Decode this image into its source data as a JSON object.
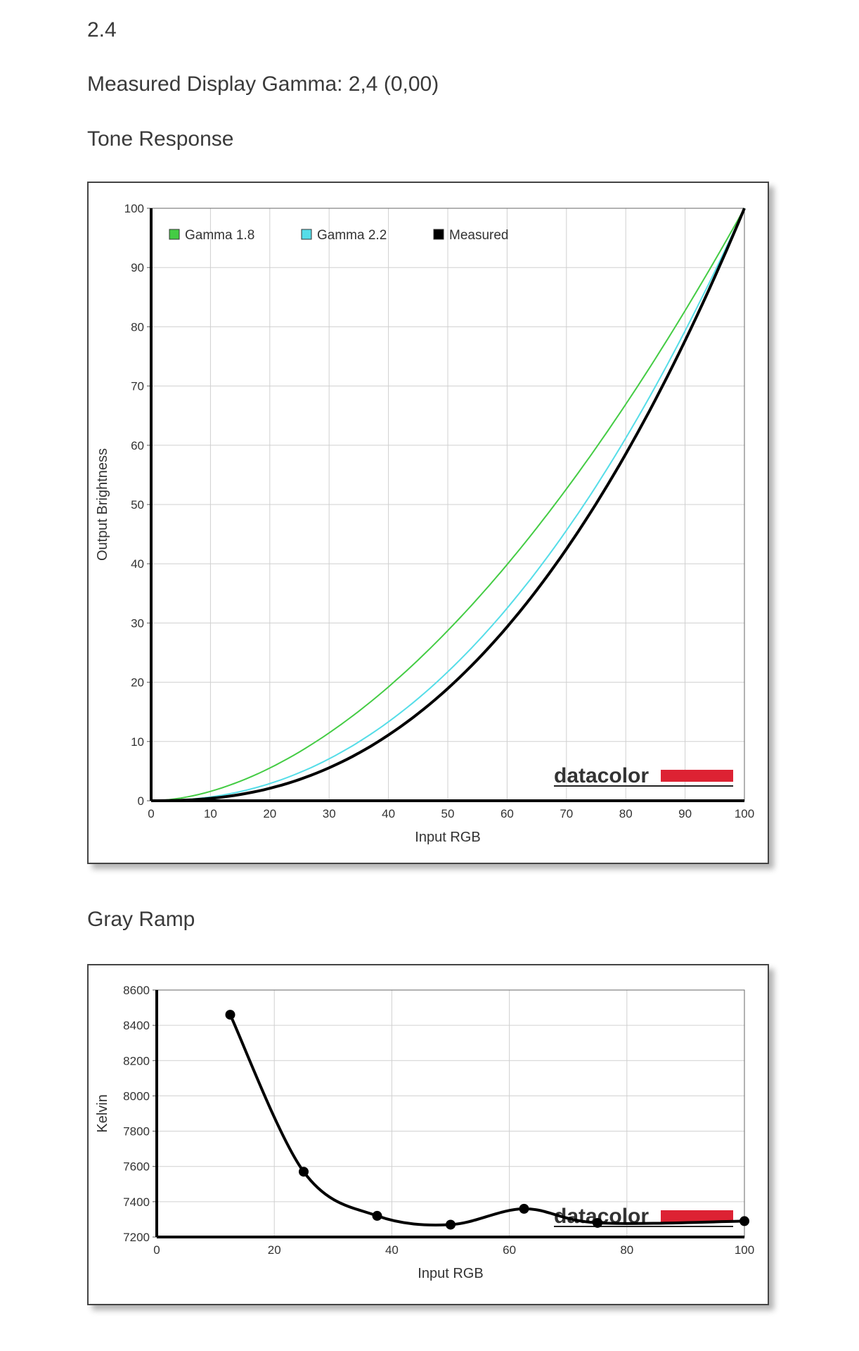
{
  "page": {
    "gamma_label": "2.4",
    "measured_gamma": "Measured Display Gamma: 2,4 (0,00)",
    "tone_title": "Tone Response",
    "gray_title": "Gray Ramp"
  },
  "logo": {
    "text": "datacolor",
    "color": "#dd2233"
  },
  "chart_data": [
    {
      "type": "line",
      "xlabel": "Input RGB",
      "ylabel": "Output Brightness",
      "xlim": [
        0,
        100
      ],
      "ylim": [
        0,
        100
      ],
      "x_ticks": [
        0,
        10,
        20,
        30,
        40,
        50,
        60,
        70,
        80,
        90,
        100
      ],
      "y_ticks": [
        0,
        10,
        20,
        30,
        40,
        50,
        60,
        70,
        80,
        90,
        100
      ],
      "grid": true,
      "legend_position": "top-left",
      "series": [
        {
          "name": "Gamma 1.8",
          "color": "#44cc44",
          "gamma": 1.8,
          "x": [
            0,
            10,
            20,
            30,
            40,
            50,
            60,
            70,
            80,
            90,
            100
          ],
          "y": [
            0,
            1.6,
            5.5,
            11.5,
            19.2,
            28.7,
            39.9,
            52.6,
            66.9,
            82.7,
            100
          ]
        },
        {
          "name": "Gamma 2.2",
          "color": "#55dde8",
          "gamma": 2.2,
          "x": [
            0,
            10,
            20,
            30,
            40,
            50,
            60,
            70,
            80,
            90,
            100
          ],
          "y": [
            0,
            0.6,
            2.9,
            7.1,
            13.3,
            21.8,
            32.5,
            45.6,
            61.2,
            79.3,
            100
          ]
        },
        {
          "name": "Measured",
          "color": "#000000",
          "gamma": 2.4,
          "x": [
            0,
            10,
            20,
            30,
            40,
            50,
            60,
            70,
            80,
            90,
            100
          ],
          "y": [
            0,
            0.4,
            2.1,
            5.6,
            11.0,
            18.9,
            29.3,
            42.5,
            58.5,
            77.6,
            100
          ]
        }
      ]
    },
    {
      "type": "line",
      "xlabel": "Input RGB",
      "ylabel": "Kelvin",
      "xlim": [
        0,
        100
      ],
      "ylim": [
        7200,
        8600
      ],
      "x_ticks": [
        0,
        20,
        40,
        60,
        80,
        100
      ],
      "y_ticks": [
        7200,
        7400,
        7600,
        7800,
        8000,
        8200,
        8400,
        8600
      ],
      "grid": true,
      "series": [
        {
          "name": "",
          "color": "#000000",
          "x": [
            12.5,
            25,
            37.5,
            50,
            62.5,
            75,
            100
          ],
          "y": [
            8460,
            7570,
            7320,
            7270,
            7360,
            7280,
            7290
          ]
        }
      ]
    }
  ]
}
